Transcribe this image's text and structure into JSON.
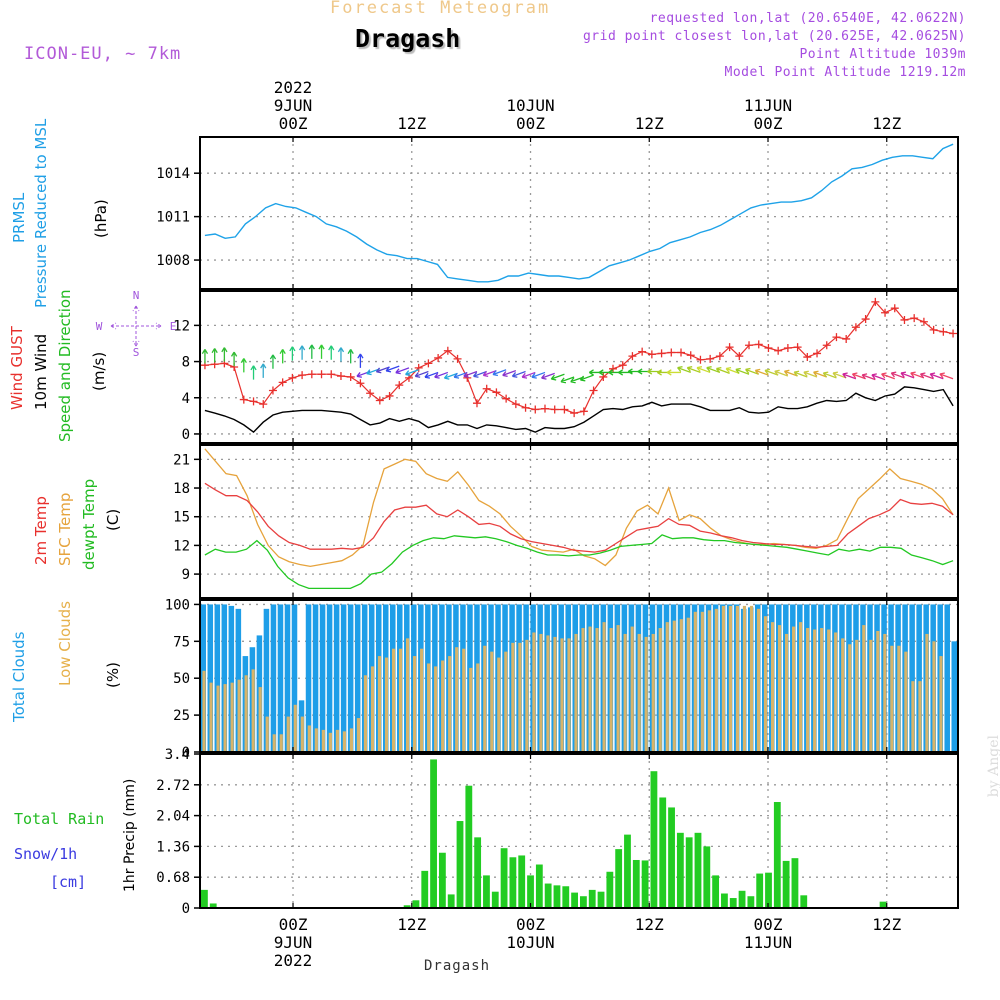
{
  "header": {
    "title": "Forecast Meteogram",
    "station": "Dragash",
    "model": "ICON-EU, ~ 7km",
    "requested": "requested lon,lat (20.6540E, 42.0622N)",
    "grid_point": "grid point closest lon,lat (20.625E, 42.0625N)",
    "point_altitude": "Point Altitude 1039m",
    "model_altitude": "Model Point Altitude 1219.12m"
  },
  "footer": {
    "station": "Dragash",
    "credit": "by Angel"
  },
  "time_axis": {
    "top_labels": [
      {
        "t": 0,
        "lines": [
          "2022",
          "9JUN",
          "00Z"
        ]
      },
      {
        "t": 12,
        "lines": [
          "12Z"
        ]
      },
      {
        "t": 24,
        "lines": [
          "10JUN",
          "00Z"
        ]
      },
      {
        "t": 36,
        "lines": [
          "12Z"
        ]
      },
      {
        "t": 48,
        "lines": [
          "11JUN",
          "00Z"
        ]
      },
      {
        "t": 60,
        "lines": [
          "12Z"
        ]
      }
    ],
    "bottom_labels": [
      {
        "t": 0,
        "lines": [
          "00Z",
          "9JUN",
          "2022"
        ]
      },
      {
        "t": 12,
        "lines": [
          "12Z"
        ]
      },
      {
        "t": 24,
        "lines": [
          "00Z",
          "10JUN"
        ]
      },
      {
        "t": 36,
        "lines": [
          "12Z"
        ]
      },
      {
        "t": 48,
        "lines": [
          "00Z",
          "11JUN"
        ]
      },
      {
        "t": 60,
        "lines": [
          "12Z"
        ]
      }
    ]
  },
  "panel_labels": {
    "pressure": [
      {
        "text": "PRMSL",
        "color": "#1f9fe6"
      },
      {
        "text": "Pressure Reduced to MSL",
        "color": "#1f9fe6"
      },
      {
        "text": "(hPa)",
        "color": "#000000"
      }
    ],
    "wind": [
      {
        "text": "Wind GUST",
        "color": "#e8302d"
      },
      {
        "text": "10m Wind",
        "color": "#000000"
      },
      {
        "text": "Speed and Direction",
        "color": "#22bb22"
      },
      {
        "text": "(m/s)",
        "color": "#000000"
      }
    ],
    "compass": {
      "n": "N",
      "s": "S",
      "w": "W",
      "e": "E",
      "color": "#a054dc"
    },
    "temp": [
      {
        "text": "2m Temp",
        "color": "#e8302d"
      },
      {
        "text": "SFC Temp",
        "color": "#e6a33c"
      },
      {
        "text": "dewpt Temp",
        "color": "#22bb22"
      },
      {
        "text": "(C)",
        "color": "#000000"
      }
    ],
    "clouds": [
      {
        "text": "Total Clouds",
        "color": "#1f9fe6"
      },
      {
        "text": "Low Clouds",
        "color": "#e6b04a"
      },
      {
        "text": "(%)",
        "color": "#000000"
      }
    ],
    "precip_axis": "1hr Precip (mm)",
    "rain_label": "Total  Rain",
    "snow_label": "Snow/1h",
    "snow_unit": "[cm]"
  },
  "colors": {
    "pressure": "#1ea2e8",
    "gust": "#e8302d",
    "wind": "#000000",
    "t2m": "#e84040",
    "sfc": "#e6a33c",
    "dew": "#22c822",
    "total_cloud": "#1e9ee8",
    "low_cloud": "#d7b46a",
    "rain": "#22cc22",
    "grid": "#9a9a9a"
  },
  "chart_data": [
    {
      "type": "line",
      "panel": "pressure",
      "ylabel": "(hPa)",
      "ylim": [
        1006,
        1016.5
      ],
      "yticks": [
        1008,
        1011,
        1014
      ],
      "series": [
        {
          "name": "PRMSL",
          "values": [
            1009.7,
            1009.8,
            1009.5,
            1009.6,
            1010.5,
            1011.0,
            1011.6,
            1011.9,
            1011.7,
            1011.6,
            1011.3,
            1011.0,
            1010.5,
            1010.3,
            1010.0,
            1009.6,
            1009.1,
            1008.7,
            1008.4,
            1008.3,
            1008.1,
            1008.1,
            1007.9,
            1007.7,
            1006.8,
            1006.7,
            1006.6,
            1006.5,
            1006.5,
            1006.6,
            1006.9,
            1006.9,
            1007.1,
            1007.0,
            1006.9,
            1006.9,
            1006.8,
            1006.7,
            1006.8,
            1007.2,
            1007.6,
            1007.8,
            1008.0,
            1008.3,
            1008.6,
            1008.8,
            1009.2,
            1009.4,
            1009.6,
            1009.9,
            1010.1,
            1010.4,
            1010.8,
            1011.2,
            1011.6,
            1011.8,
            1011.9,
            1012.0,
            1012.0,
            1012.1,
            1012.3,
            1012.8,
            1013.4,
            1013.8,
            1014.3,
            1014.4,
            1014.6,
            1014.9,
            1015.1,
            1015.2,
            1015.2,
            1015.1,
            1015.0,
            1015.7,
            1016.0
          ]
        }
      ]
    },
    {
      "type": "line",
      "panel": "wind",
      "ylabel": "(m/s)",
      "ylim": [
        -1,
        15.8
      ],
      "yticks": [
        0,
        4,
        8,
        12
      ],
      "series": [
        {
          "name": "Wind GUST",
          "values": [
            7.6,
            7.7,
            7.8,
            7.4,
            3.8,
            3.6,
            3.3,
            4.8,
            5.7,
            6.2,
            6.5,
            6.6,
            6.6,
            6.6,
            6.4,
            6.3,
            5.6,
            4.5,
            3.7,
            4.2,
            5.4,
            6.2,
            7.3,
            7.8,
            8.4,
            9.2,
            8.3,
            6.2,
            3.4,
            5.0,
            4.6,
            3.9,
            3.3,
            2.9,
            2.7,
            2.8,
            2.7,
            2.7,
            2.3,
            2.5,
            4.8,
            6.3,
            7.2,
            7.6,
            8.6,
            9.1,
            8.8,
            8.9,
            9.0,
            9.0,
            8.7,
            8.2,
            8.3,
            8.6,
            9.6,
            8.6,
            9.8,
            9.9,
            9.5,
            9.2,
            9.5,
            9.6,
            8.5,
            8.9,
            9.8,
            10.7,
            10.5,
            11.8,
            12.7,
            14.6,
            13.4,
            13.9,
            12.6,
            12.8,
            12.4,
            11.5,
            11.3,
            11.1
          ]
        },
        {
          "name": "10m Wind",
          "values": [
            2.6,
            2.3,
            2.0,
            1.6,
            1.0,
            0.2,
            1.3,
            2.1,
            2.4,
            2.5,
            2.6,
            2.6,
            2.6,
            2.5,
            2.4,
            2.2,
            1.6,
            1.0,
            1.2,
            1.7,
            1.4,
            1.7,
            1.4,
            0.7,
            1.0,
            1.4,
            1.0,
            1.0,
            0.6,
            1.0,
            0.9,
            0.7,
            0.5,
            0.6,
            0.2,
            0.7,
            0.6,
            0.6,
            0.8,
            1.3,
            2.0,
            2.7,
            2.8,
            2.7,
            3.0,
            3.1,
            3.5,
            3.1,
            3.3,
            3.3,
            3.3,
            3.0,
            2.6,
            2.6,
            2.6,
            2.9,
            2.4,
            2.3,
            2.4,
            3.0,
            2.8,
            2.8,
            3.0,
            3.4,
            3.7,
            3.6,
            3.7,
            4.5,
            4.0,
            3.7,
            4.2,
            4.4,
            5.2,
            5.1,
            4.9,
            4.7,
            4.9,
            3.1
          ]
        },
        {
          "name": "Speed and Direction",
          "values": [
            7.8,
            7.9,
            8.0,
            7.5,
            6.8,
            6.0,
            6.2,
            7.2,
            7.8,
            8.1,
            8.2,
            8.3,
            8.3,
            8.2,
            8.0,
            7.8,
            7.3,
            6.9,
            7.2,
            7.4,
            7.5,
            7.3,
            7.1,
            6.9,
            6.8,
            6.8,
            6.7,
            6.8,
            6.9,
            6.9,
            7.0,
            7.1,
            7.0,
            6.9,
            6.8,
            6.8,
            6.7,
            6.6,
            6.3,
            6.3,
            6.5,
            6.8,
            6.8,
            6.8,
            6.8,
            6.9,
            6.9,
            6.9,
            6.8,
            6.8,
            6.8,
            6.8,
            6.8,
            6.8,
            6.7,
            6.7,
            6.6,
            6.6,
            6.5,
            6.5,
            6.4,
            6.4,
            6.3,
            6.3,
            6.3,
            6.2,
            6.2,
            6.1,
            6.1,
            6.0,
            6.0,
            6.1,
            6.2,
            6.2,
            6.2,
            6.1,
            6.1,
            6.1
          ]
        }
      ]
    },
    {
      "type": "line",
      "panel": "temperature",
      "ylabel": "(C)",
      "ylim": [
        6.5,
        22.5
      ],
      "yticks": [
        9,
        12,
        15,
        18,
        21
      ],
      "series": [
        {
          "name": "2m Temp",
          "values": [
            18.5,
            17.8,
            17.2,
            17.2,
            16.7,
            15.5,
            14.0,
            13.0,
            12.3,
            12.0,
            11.6,
            11.6,
            11.6,
            11.7,
            11.6,
            11.8,
            12.8,
            14.5,
            15.7,
            16.0,
            16.0,
            16.2,
            15.3,
            15.0,
            15.7,
            15.0,
            14.2,
            14.3,
            14.0,
            13.2,
            12.7,
            12.4,
            12.2,
            12.0,
            11.8,
            11.5,
            11.4,
            11.3,
            11.5,
            12.2,
            12.9,
            13.6,
            13.8,
            14.0,
            14.8,
            14.2,
            14.1,
            13.5,
            13.3,
            13.0,
            12.8,
            12.5,
            12.3,
            12.2,
            12.1,
            12.1,
            12.0,
            11.9,
            11.8,
            11.9,
            12.0,
            13.2,
            14.0,
            14.8,
            15.2,
            15.7,
            16.8,
            16.4,
            16.3,
            16.4,
            16.1,
            15.2
          ]
        },
        {
          "name": "SFC Temp",
          "values": [
            22.1,
            20.8,
            19.5,
            19.3,
            17.2,
            14.2,
            12.0,
            10.8,
            10.3,
            10.0,
            9.8,
            10.0,
            10.2,
            10.4,
            11.0,
            12.0,
            16.5,
            20.0,
            20.5,
            21.0,
            20.8,
            19.5,
            19.0,
            18.7,
            19.7,
            18.3,
            16.7,
            16.1,
            15.3,
            14.0,
            13.0,
            11.9,
            11.5,
            11.4,
            11.3,
            11.6,
            10.9,
            10.6,
            9.9,
            11.0,
            13.8,
            15.6,
            16.2,
            15.3,
            18.0,
            14.6,
            15.2,
            14.8,
            13.8,
            13.0,
            12.6,
            12.3,
            12.1,
            12.1,
            12.2,
            12.1,
            12.0,
            11.8,
            11.7,
            12.0,
            12.6,
            14.8,
            16.9,
            17.9,
            18.9,
            20.0,
            19.0,
            18.7,
            18.4,
            17.9,
            16.9,
            15.2
          ]
        },
        {
          "name": "dewpt Temp",
          "values": [
            11.0,
            11.6,
            11.3,
            11.3,
            11.6,
            12.5,
            11.5,
            9.8,
            8.6,
            7.9,
            7.5,
            7.5,
            7.5,
            7.5,
            7.5,
            8.0,
            9.0,
            9.2,
            10.1,
            11.3,
            12.0,
            12.5,
            12.8,
            12.7,
            13.0,
            12.9,
            12.8,
            12.9,
            12.7,
            12.4,
            12.0,
            11.7,
            11.3,
            11.0,
            11.0,
            10.9,
            11.0,
            11.0,
            11.2,
            11.5,
            11.9,
            12.0,
            12.1,
            12.2,
            13.1,
            12.7,
            12.8,
            12.8,
            12.6,
            12.5,
            12.5,
            12.3,
            12.2,
            12.1,
            12.0,
            11.9,
            11.8,
            11.6,
            11.4,
            11.2,
            11.0,
            11.6,
            11.4,
            11.6,
            11.4,
            11.8,
            11.8,
            11.7,
            11.0,
            10.7,
            10.4,
            10.0,
            10.4
          ]
        }
      ]
    },
    {
      "type": "bar",
      "panel": "clouds",
      "ylabel": "(%)",
      "ylim": [
        0,
        103
      ],
      "yticks": [
        0,
        25,
        50,
        75,
        100
      ],
      "series": [
        {
          "name": "Total Clouds",
          "values": [
            100,
            100,
            100,
            100,
            99,
            97,
            65,
            71,
            79,
            97,
            100,
            100,
            100,
            100,
            35,
            100,
            100,
            100,
            100,
            100,
            100,
            100,
            100,
            100,
            100,
            100,
            100,
            100,
            100,
            100,
            100,
            100,
            100,
            100,
            100,
            100,
            100,
            100,
            100,
            100,
            100,
            100,
            100,
            100,
            100,
            100,
            100,
            100,
            100,
            100,
            100,
            100,
            100,
            100,
            100,
            100,
            100,
            100,
            100,
            100,
            100,
            100,
            100,
            100,
            100,
            100,
            100,
            100,
            100,
            100,
            100,
            100,
            100,
            100,
            100,
            100,
            100,
            97,
            98,
            100,
            100,
            100,
            100,
            100,
            100,
            100,
            100,
            100,
            100,
            100,
            100,
            100,
            100,
            100,
            100,
            100,
            100,
            100,
            100,
            100,
            100,
            100,
            100,
            100,
            100,
            100,
            100,
            75
          ]
        },
        {
          "name": "Low Clouds",
          "values": [
            55,
            47,
            45,
            46,
            47,
            49,
            52,
            56,
            44,
            24,
            12,
            12,
            24,
            32,
            24,
            18,
            16,
            15,
            13,
            15,
            14,
            16,
            23,
            52,
            58,
            65,
            64,
            70,
            70,
            77,
            65,
            70,
            60,
            58,
            62,
            65,
            71,
            70,
            57,
            60,
            72,
            68,
            64,
            68,
            74,
            74,
            76,
            81,
            80,
            79,
            78,
            77,
            77,
            80,
            84,
            85,
            84,
            88,
            84,
            86,
            80,
            85,
            80,
            78,
            80,
            84,
            88,
            89,
            90,
            91,
            95,
            95,
            96,
            97,
            99,
            99,
            99,
            99,
            99,
            97,
            92,
            88,
            86,
            80,
            85,
            88,
            84,
            83,
            84,
            83,
            81,
            77,
            73,
            76,
            86,
            76,
            82,
            80,
            72,
            72,
            68,
            48,
            48,
            80,
            75,
            65
          ]
        }
      ]
    },
    {
      "type": "bar",
      "panel": "precipitation",
      "ylabel": "1hr Precip (mm)",
      "ylim": [
        0,
        3.4
      ],
      "yticks": [
        0,
        0.68,
        1.36,
        2.04,
        2.72,
        3.4
      ],
      "series": [
        {
          "name": "Total Rain",
          "values": [
            0.4,
            0.1,
            0,
            0.02,
            0,
            0,
            0,
            0,
            0,
            0,
            0,
            0,
            0,
            0,
            0,
            0,
            0,
            0,
            0,
            0,
            0,
            0,
            0,
            0.06,
            0.17,
            0.82,
            3.28,
            1.22,
            0.3,
            1.92,
            2.7,
            1.56,
            0.72,
            0.36,
            1.32,
            1.12,
            1.16,
            0.72,
            0.96,
            0.54,
            0.5,
            0.48,
            0.34,
            0.26,
            0.4,
            0.36,
            0.8,
            1.3,
            1.62,
            1.06,
            1.05,
            3.02,
            2.44,
            2.22,
            1.66,
            1.56,
            1.66,
            1.36,
            0.72,
            0.32,
            0.22,
            0.38,
            0.26,
            0.76,
            0.78,
            2.34,
            1.04,
            1.1,
            0.28,
            0,
            0,
            0,
            0,
            0,
            0,
            0,
            0,
            0.14,
            0,
            0,
            0,
            0,
            0,
            0,
            0,
            0
          ]
        }
      ]
    }
  ]
}
